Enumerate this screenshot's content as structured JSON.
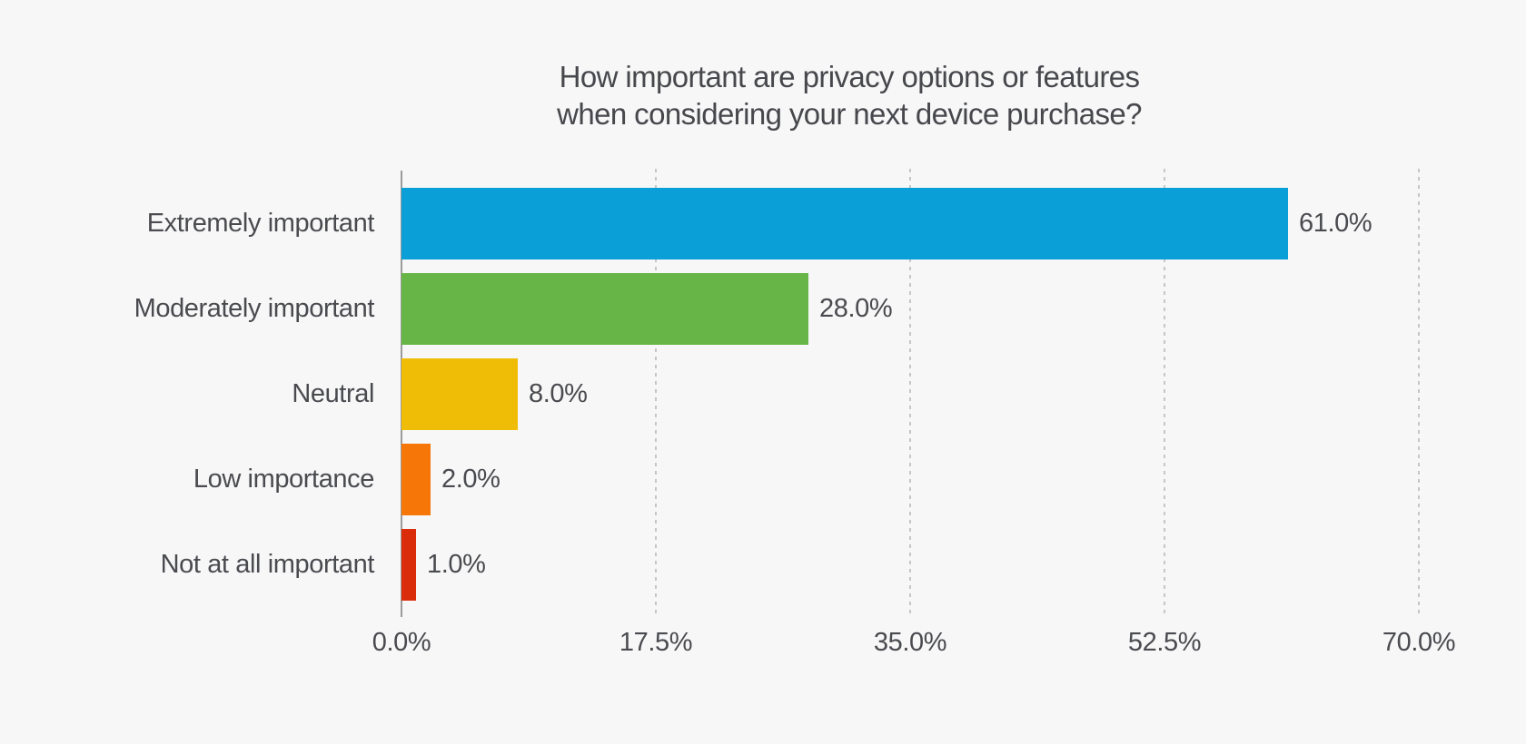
{
  "chart_data": {
    "type": "bar",
    "orientation": "horizontal",
    "title": "How important are privacy options or features when considering your next device purchase?",
    "title_lines": [
      "How important are privacy options or features",
      "when considering your next device purchase?"
    ],
    "categories": [
      "Extremely important",
      "Moderately important",
      "Neutral",
      "Low importance",
      "Not at all important"
    ],
    "values": [
      61.0,
      28.0,
      8.0,
      2.0,
      1.0
    ],
    "value_labels": [
      "61.0%",
      "28.0%",
      "8.0%",
      "2.0%",
      "1.0%"
    ],
    "bar_colors": [
      "#0a9fd6",
      "#68b547",
      "#efbd05",
      "#f67608",
      "#da2b0b"
    ],
    "x_ticks": [
      {
        "value": 0,
        "label": "0.0%"
      },
      {
        "value": 17.5,
        "label": "17.5%"
      },
      {
        "value": 35,
        "label": "35.0%"
      },
      {
        "value": 52.5,
        "label": "52.5%"
      },
      {
        "value": 70,
        "label": "70.0%"
      }
    ],
    "xlim": [
      0,
      70
    ],
    "xlabel": "",
    "ylabel": "",
    "grid": "vertical-dashed",
    "legend": "none",
    "colors": {
      "background": "#f7f7f8",
      "grid": "#c6c6c6",
      "axis": "#9b9b9b",
      "text": "#4a4b4f",
      "title_text": "#47484c"
    }
  }
}
